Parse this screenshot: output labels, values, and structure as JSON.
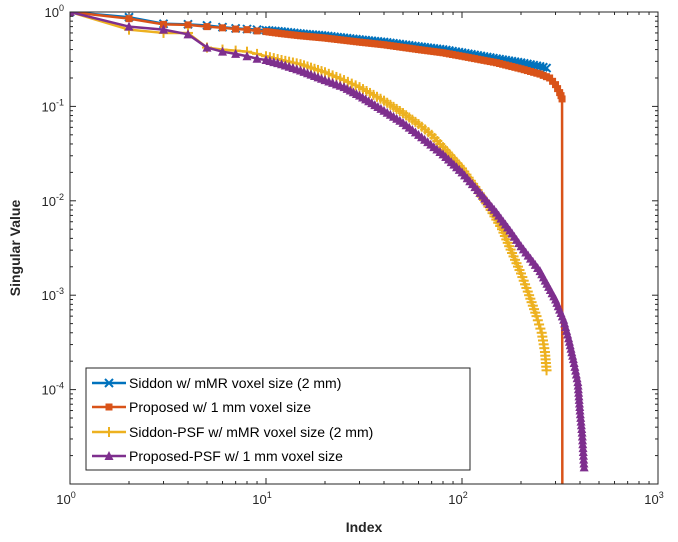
{
  "chart_data": {
    "type": "line",
    "title": "",
    "xlabel": "Index",
    "ylabel": "Singular Value",
    "xscale": "log",
    "yscale": "log",
    "xlim": [
      1,
      1000
    ],
    "ylim": [
      1e-05,
      1
    ],
    "x_ticks": [
      {
        "base": "10",
        "exp": "0"
      },
      {
        "base": "10",
        "exp": "1"
      },
      {
        "base": "10",
        "exp": "2"
      },
      {
        "base": "10",
        "exp": "3"
      }
    ],
    "y_ticks": [
      {
        "value": 1,
        "base": "10",
        "exp": "0"
      },
      {
        "value": 0.1,
        "base": "10",
        "exp": "-1"
      },
      {
        "value": 0.01,
        "base": "10",
        "exp": "-2"
      },
      {
        "value": 0.001,
        "base": "10",
        "exp": "-3"
      },
      {
        "value": 0.0001,
        "base": "10",
        "exp": "-4"
      }
    ],
    "grid": false,
    "legend_position": "bottom-left",
    "series": [
      {
        "name": "Siddon w/ mMR voxel size (2 mm)",
        "color": "#0072BD",
        "marker": "x",
        "points": [
          [
            1,
            1.0
          ],
          [
            2,
            0.88
          ],
          [
            3,
            0.75
          ],
          [
            4,
            0.74
          ],
          [
            5,
            0.72
          ],
          [
            6,
            0.69
          ],
          [
            7,
            0.67
          ],
          [
            8,
            0.66
          ],
          [
            9,
            0.65
          ],
          [
            10,
            0.64
          ],
          [
            12,
            0.62
          ],
          [
            15,
            0.59
          ],
          [
            20,
            0.56
          ],
          [
            30,
            0.51
          ],
          [
            40,
            0.48
          ],
          [
            60,
            0.43
          ],
          [
            80,
            0.4
          ],
          [
            100,
            0.37
          ],
          [
            150,
            0.32
          ],
          [
            200,
            0.29
          ],
          [
            250,
            0.265
          ],
          [
            270,
            0.255
          ]
        ]
      },
      {
        "name": "Proposed w/ 1 mm voxel size",
        "color": "#D95319",
        "marker": "square",
        "points": [
          [
            1,
            1.0
          ],
          [
            2,
            0.85
          ],
          [
            3,
            0.74
          ],
          [
            4,
            0.73
          ],
          [
            5,
            0.7
          ],
          [
            6,
            0.68
          ],
          [
            7,
            0.66
          ],
          [
            8,
            0.65
          ],
          [
            9,
            0.63
          ],
          [
            10,
            0.62
          ],
          [
            12,
            0.59
          ],
          [
            15,
            0.56
          ],
          [
            20,
            0.53
          ],
          [
            30,
            0.48
          ],
          [
            40,
            0.45
          ],
          [
            60,
            0.4
          ],
          [
            80,
            0.37
          ],
          [
            100,
            0.34
          ],
          [
            150,
            0.29
          ],
          [
            200,
            0.25
          ],
          [
            250,
            0.22
          ],
          [
            280,
            0.2
          ],
          [
            300,
            0.17
          ],
          [
            315,
            0.14
          ],
          [
            320,
            0.13
          ],
          [
            324,
            0.12
          ],
          [
            325,
            1e-05
          ]
        ]
      },
      {
        "name": "Siddon-PSF w/ mMR voxel size (2 mm)",
        "color": "#EDB120",
        "marker": "plus",
        "points": [
          [
            1,
            1.0
          ],
          [
            2,
            0.65
          ],
          [
            3,
            0.6
          ],
          [
            4,
            0.6
          ],
          [
            5,
            0.42
          ],
          [
            6,
            0.4
          ],
          [
            7,
            0.39
          ],
          [
            8,
            0.38
          ],
          [
            9,
            0.36
          ],
          [
            10,
            0.34
          ],
          [
            12,
            0.31
          ],
          [
            15,
            0.28
          ],
          [
            20,
            0.23
          ],
          [
            25,
            0.19
          ],
          [
            30,
            0.16
          ],
          [
            40,
            0.115
          ],
          [
            50,
            0.085
          ],
          [
            60,
            0.065
          ],
          [
            70,
            0.05
          ],
          [
            80,
            0.037
          ],
          [
            100,
            0.022
          ],
          [
            120,
            0.013
          ],
          [
            140,
            0.008
          ],
          [
            160,
            0.005
          ],
          [
            180,
            0.0028
          ],
          [
            200,
            0.0017
          ],
          [
            220,
            0.001
          ],
          [
            240,
            0.0006
          ],
          [
            255,
            0.0004
          ],
          [
            265,
            0.00025
          ],
          [
            270,
            0.00016
          ]
        ]
      },
      {
        "name": "Proposed-PSF w/ 1 mm voxel size",
        "color": "#7E2F8E",
        "marker": "triangle",
        "points": [
          [
            1,
            1.0
          ],
          [
            2,
            0.7
          ],
          [
            3,
            0.65
          ],
          [
            4,
            0.58
          ],
          [
            5,
            0.42
          ],
          [
            6,
            0.38
          ],
          [
            7,
            0.36
          ],
          [
            8,
            0.34
          ],
          [
            9,
            0.32
          ],
          [
            10,
            0.31
          ],
          [
            12,
            0.28
          ],
          [
            15,
            0.24
          ],
          [
            20,
            0.19
          ],
          [
            25,
            0.16
          ],
          [
            30,
            0.13
          ],
          [
            40,
            0.09
          ],
          [
            50,
            0.067
          ],
          [
            60,
            0.05
          ],
          [
            80,
            0.031
          ],
          [
            100,
            0.02
          ],
          [
            120,
            0.013
          ],
          [
            150,
            0.0075
          ],
          [
            180,
            0.0045
          ],
          [
            200,
            0.0033
          ],
          [
            250,
            0.0018
          ],
          [
            300,
            0.0009
          ],
          [
            330,
            0.00055
          ],
          [
            350,
            0.00035
          ],
          [
            370,
            0.00021
          ],
          [
            390,
            0.00012
          ],
          [
            400,
            6e-05
          ],
          [
            410,
            3.5e-05
          ],
          [
            420,
            1.5e-05
          ]
        ]
      }
    ]
  }
}
